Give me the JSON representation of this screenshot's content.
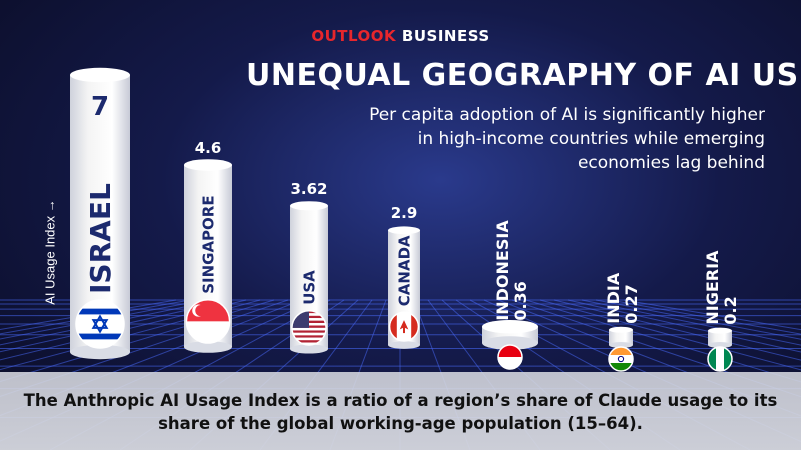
{
  "brand": {
    "part1": "OUTLOOK",
    "part2": " BUSINESS"
  },
  "title": "UNEQUAL GEOGRAPHY OF AI USE",
  "subtitle": "Per capita adoption of AI is significantly higher in high-income countries while emerging economies lag behind",
  "footer": "The Anthropic AI Usage Index is a ratio of a region’s share of Claude usage to its share of the global working-age population (15–64).",
  "colors": {
    "brand_red": "#e8262c",
    "background": "#141a4a",
    "grid": "#4a6cff",
    "bar": "#f4f4f4",
    "bar_label": "#1c2a6e"
  },
  "chart_data": {
    "type": "bar",
    "title": "UNEQUAL GEOGRAPHY OF AI USE",
    "ylabel": "AI Usage Index →",
    "xlabel": "",
    "categories": [
      "ISRAEL",
      "SINGAPORE",
      "USA",
      "CANADA",
      "INDONESIA",
      "INDIA",
      "NIGERIA"
    ],
    "values": [
      7,
      4.6,
      3.62,
      2.9,
      0.36,
      0.27,
      0.2
    ],
    "value_labels": [
      "7",
      "4.6",
      "3.62",
      "2.9",
      "0.36",
      "0.27",
      "0.2"
    ],
    "flags": [
      "israel-flag-icon",
      "singapore-flag-icon",
      "usa-flag-icon",
      "canada-flag-icon",
      "indonesia-flag-icon",
      "india-flag-icon",
      "nigeria-flag-icon"
    ],
    "ylim": [
      0,
      7
    ],
    "grid": false,
    "legend": "none"
  }
}
